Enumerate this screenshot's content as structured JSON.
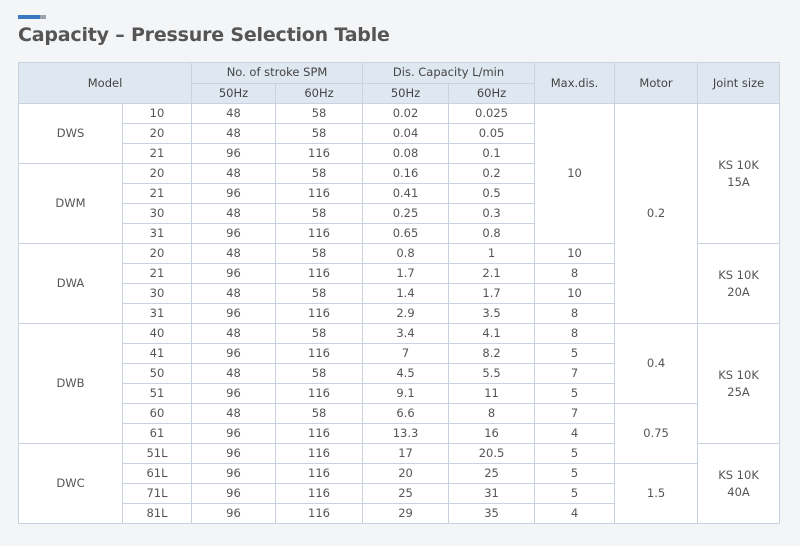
{
  "title": "Capacity – Pressure Selection Table",
  "header": {
    "model": "Model",
    "stroke": "No. of stroke SPM",
    "capacity": "Dis. Capacity L/min",
    "maxdis": "Max.dis.",
    "motor": "Motor",
    "joint": "Joint size",
    "sub": [
      "50Hz",
      "60Hz",
      "50Hz",
      "60Hz"
    ]
  },
  "table": {
    "rows": [
      {
        "model": "DWS",
        "cells": [
          "10",
          "48",
          "58",
          "0.02",
          "0.025"
        ],
        "maxdis": "10",
        "motor": "0.2",
        "joint": [
          "KS 10K",
          "15A"
        ]
      },
      {
        "cells": [
          "20",
          "48",
          "58",
          "0.04",
          "0.05"
        ]
      },
      {
        "cells": [
          "21",
          "96",
          "116",
          "0.08",
          "0.1"
        ]
      },
      {
        "model": "DWM",
        "cells": [
          "20",
          "48",
          "58",
          "0.16",
          "0.2"
        ]
      },
      {
        "cells": [
          "21",
          "96",
          "116",
          "0.41",
          "0.5"
        ]
      },
      {
        "cells": [
          "30",
          "48",
          "58",
          "0.25",
          "0.3"
        ]
      },
      {
        "cells": [
          "31",
          "96",
          "116",
          "0.65",
          "0.8"
        ]
      },
      {
        "model": "DWA",
        "cells": [
          "20",
          "48",
          "58",
          "0.8",
          "1"
        ],
        "maxdis": "10",
        "joint": [
          "KS 10K",
          "20A"
        ]
      },
      {
        "cells": [
          "21",
          "96",
          "116",
          "1.7",
          "2.1"
        ],
        "maxdis": "8"
      },
      {
        "cells": [
          "30",
          "48",
          "58",
          "1.4",
          "1.7"
        ],
        "maxdis": "10"
      },
      {
        "cells": [
          "31",
          "96",
          "116",
          "2.9",
          "3.5"
        ],
        "maxdis": "8"
      },
      {
        "model": "DWB",
        "cells": [
          "40",
          "48",
          "58",
          "3.4",
          "4.1"
        ],
        "maxdis": "8",
        "motor": "0.4",
        "joint": [
          "KS 10K",
          "25A"
        ]
      },
      {
        "cells": [
          "41",
          "96",
          "116",
          "7",
          "8.2"
        ],
        "maxdis": "5"
      },
      {
        "cells": [
          "50",
          "48",
          "58",
          "4.5",
          "5.5"
        ],
        "maxdis": "7"
      },
      {
        "cells": [
          "51",
          "96",
          "116",
          "9.1",
          "11"
        ],
        "maxdis": "5"
      },
      {
        "cells": [
          "60",
          "48",
          "58",
          "6.6",
          "8"
        ],
        "maxdis": "7",
        "motor": "0.75"
      },
      {
        "cells": [
          "61",
          "96",
          "116",
          "13.3",
          "16"
        ],
        "maxdis": "4"
      },
      {
        "model": "DWC",
        "cells": [
          "51L",
          "96",
          "116",
          "17",
          "20.5"
        ],
        "maxdis": "5",
        "joint": [
          "KS 10K",
          "40A"
        ]
      },
      {
        "cells": [
          "61L",
          "96",
          "116",
          "20",
          "25"
        ],
        "maxdis": "5",
        "motor": "1.5"
      },
      {
        "cells": [
          "71L",
          "96",
          "116",
          "25",
          "31"
        ],
        "maxdis": "5"
      },
      {
        "cells": [
          "81L",
          "96",
          "116",
          "29",
          "35"
        ],
        "maxdis": "4"
      }
    ]
  }
}
